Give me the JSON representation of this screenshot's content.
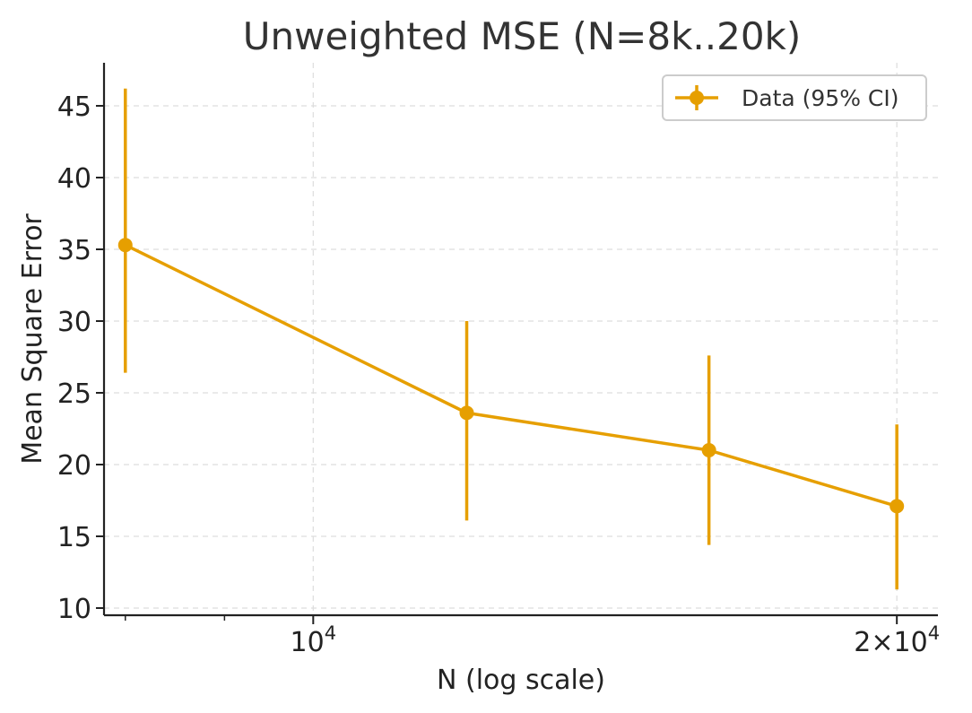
{
  "chart_data": {
    "type": "line",
    "title": "Unweighted MSE (N=8k..20k)",
    "xlabel": "N (log scale)",
    "ylabel": "Mean Square Error",
    "x_scale": "log",
    "xlim": [
      7800,
      21000
    ],
    "ylim": [
      9.5,
      48
    ],
    "y_ticks": [
      10,
      15,
      20,
      25,
      30,
      35,
      40,
      45
    ],
    "y_tick_labels": [
      "10",
      "15",
      "20",
      "25",
      "30",
      "35",
      "40",
      "45"
    ],
    "x_major_ticks": [
      {
        "value": 10000,
        "base": "10",
        "exp": "4"
      },
      {
        "value": 20000,
        "base": "2×10",
        "exp": "4"
      }
    ],
    "x_minor_ticks": [
      8000,
      9000
    ],
    "grid": true,
    "legend": {
      "position": "top-right",
      "entries": [
        "Data (95% CI)"
      ]
    },
    "color": "#E69F00",
    "series": [
      {
        "name": "Data (95% CI)",
        "x": [
          8000,
          12000,
          16000,
          20000
        ],
        "y": [
          35.3,
          23.6,
          21.0,
          17.1
        ],
        "ci_low": [
          26.4,
          16.1,
          14.4,
          11.3
        ],
        "ci_high": [
          46.2,
          30.0,
          27.6,
          22.8
        ]
      }
    ]
  }
}
